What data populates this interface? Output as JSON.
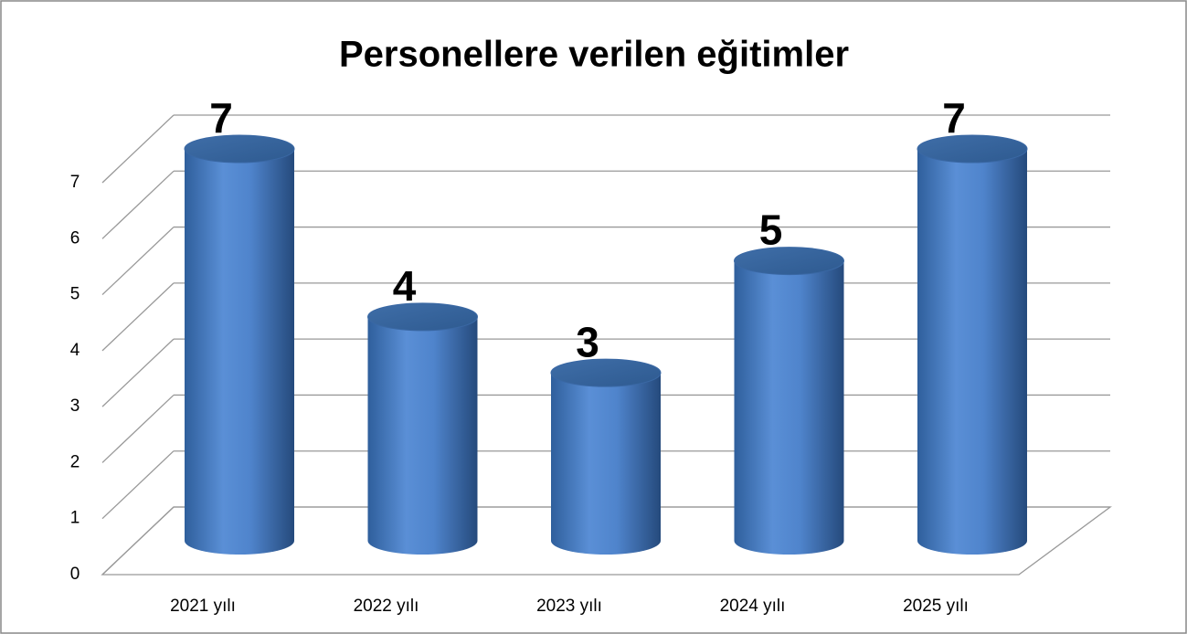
{
  "chart_data": {
    "type": "bar",
    "title": "Personellere verilen eğitimler",
    "categories": [
      "2021 yılı",
      "2022 yılı",
      "2023 yılı",
      "2024 yılı",
      "2025 yılı"
    ],
    "values": [
      7,
      4,
      3,
      5,
      7
    ],
    "color": "#4f81bd",
    "ylim": [
      0,
      7
    ],
    "yticks": [
      0,
      1,
      2,
      3,
      4,
      5,
      6,
      7
    ],
    "grid": true
  }
}
